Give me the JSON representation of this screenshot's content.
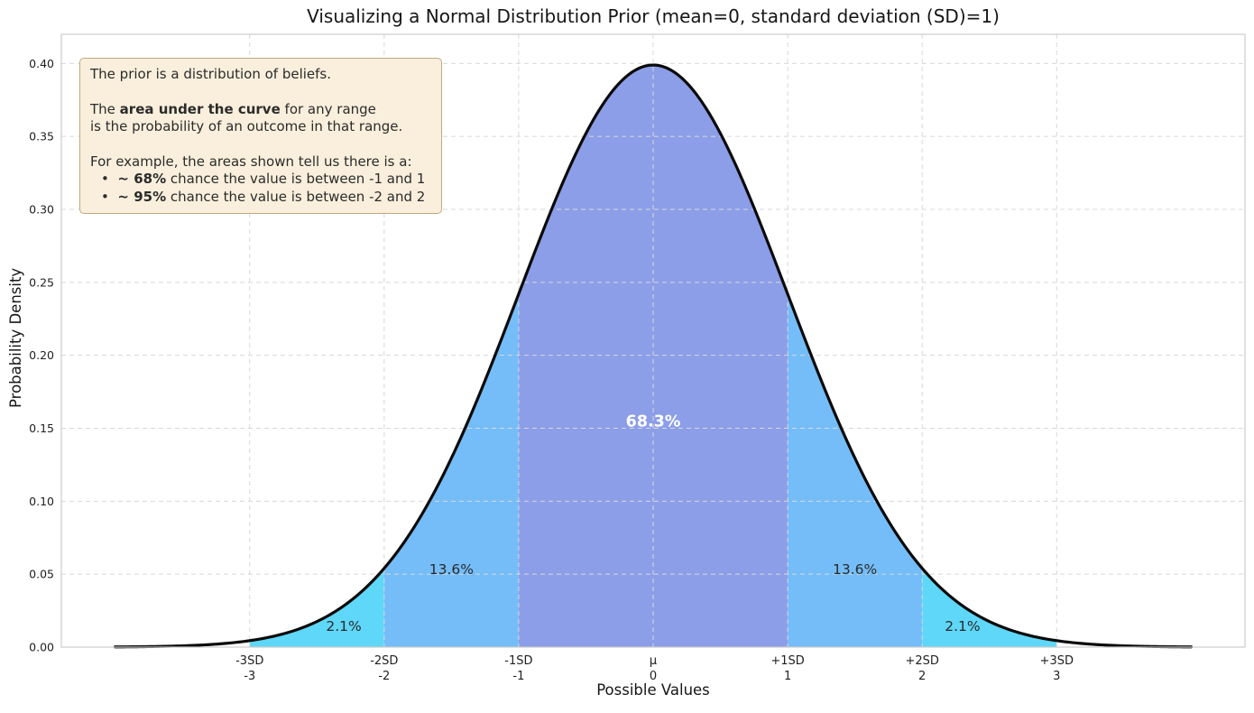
{
  "title": "Visualizing a Normal Distribution Prior (mean=0, standard deviation (SD)=1)",
  "infobox": {
    "bullet": "•",
    "line1": "The prior is a distribution of beliefs.",
    "line2_pre": "The ",
    "line2_bold": "area under the curve",
    "line2_post": " for any range",
    "line3": "is the probability of an outcome in that range.",
    "line4": "For example, the areas shown tell us there is a:",
    "bullet1_bold": "~ 68%",
    "bullet1_text": " chance the value is between -1 and 1",
    "bullet2_bold": "~ 95%",
    "bullet2_text": " chance the value is between -2 and 2"
  },
  "chart_data": {
    "type": "area",
    "title": "Visualizing a Normal Distribution Prior (mean=0, standard deviation (SD)=1)",
    "xlabel": "Possible Values",
    "ylabel": "Probability Density",
    "distribution": "normal",
    "mean": 0,
    "sd": 1,
    "xlim": [
      -4.4,
      4.4
    ],
    "ylim": [
      0,
      0.42
    ],
    "curve_range": [
      -4,
      4
    ],
    "curve_color": "#0a0a0a",
    "grid": {
      "on": true,
      "style": "dashed",
      "color": "#d8d8d8"
    },
    "legend": "none",
    "xticks": [
      {
        "value": -3,
        "line1": "-3SD",
        "line2": "-3"
      },
      {
        "value": -2,
        "line1": "-2SD",
        "line2": "-2"
      },
      {
        "value": -1,
        "line1": "-1SD",
        "line2": "-1"
      },
      {
        "value": 0,
        "line1": "μ",
        "line2": "0"
      },
      {
        "value": 1,
        "line1": "+1SD",
        "line2": "1"
      },
      {
        "value": 2,
        "line1": "+2SD",
        "line2": "2"
      },
      {
        "value": 3,
        "line1": "+3SD",
        "line2": "3"
      }
    ],
    "yticks": [
      {
        "value": 0.0,
        "label": "0.00"
      },
      {
        "value": 0.05,
        "label": "0.05"
      },
      {
        "value": 0.1,
        "label": "0.10"
      },
      {
        "value": 0.15,
        "label": "0.15"
      },
      {
        "value": 0.2,
        "label": "0.20"
      },
      {
        "value": 0.25,
        "label": "0.25"
      },
      {
        "value": 0.3,
        "label": "0.30"
      },
      {
        "value": 0.35,
        "label": "0.35"
      },
      {
        "value": 0.4,
        "label": "0.40"
      }
    ],
    "regions": [
      {
        "from": -3,
        "to": -2,
        "color": "#5fd7f8",
        "label": "2.1%",
        "label_x": -2.3,
        "label_y": 0.0148,
        "style": "pct-side"
      },
      {
        "from": -2,
        "to": -1,
        "color": "#74bdf9",
        "label": "13.6%",
        "label_x": -1.5,
        "label_y": 0.0538,
        "style": "pct-side"
      },
      {
        "from": -1,
        "to": 1,
        "color": "#8c9ee8",
        "label": "68.3%",
        "label_x": 0.0,
        "label_y": 0.155,
        "style": "pct-center"
      },
      {
        "from": 1,
        "to": 2,
        "color": "#74bdf9",
        "label": "13.6%",
        "label_x": 1.5,
        "label_y": 0.0538,
        "style": "pct-side"
      },
      {
        "from": 2,
        "to": 3,
        "color": "#5fd7f8",
        "label": "2.1%",
        "label_x": 2.3,
        "label_y": 0.0148,
        "style": "pct-side"
      }
    ]
  }
}
